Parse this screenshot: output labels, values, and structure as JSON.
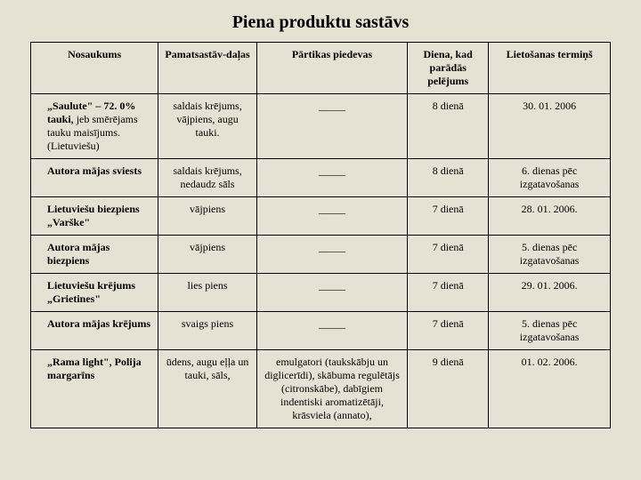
{
  "title": "Piena produktu sastāvs",
  "headers": {
    "c0": "Nosaukums",
    "c1": "Pamatsastāv-daļas",
    "c2": "Pārtikas piedevas",
    "c3": "Diena, kad parādās pelējums",
    "c4": "Lietošanas termiņš"
  },
  "rows": [
    {
      "name_html": "<b>„Saulute\" – 72. 0% tauki,</b> <span class=\"sub\">jeb smērējams tauku maisījums. (Lietuviešu)</span>",
      "comp": "saldais krējums, vājpiens, augu tauki.",
      "add": "_____",
      "day": "8 dienā",
      "term": "30. 01. 2006"
    },
    {
      "name_html": "<b>Autora mājas sviests</b>",
      "comp": "saldais krējums, nedaudz sāls",
      "add": "_____",
      "day": "8 dienā",
      "term": "6. dienas pēc izgatavošanas"
    },
    {
      "name_html": "<b>Lietuviešu biezpiens „Varške\"</b>",
      "comp": "vājpiens",
      "add": "_____",
      "day": "7 dienā",
      "term": "28. 01. 2006."
    },
    {
      "name_html": "<b>Autora mājas biezpiens</b>",
      "comp": "vājpiens",
      "add": "_____",
      "day": "7 dienā",
      "term": "5. dienas pēc izgatavošanas"
    },
    {
      "name_html": "<b>Lietuviešu krējums „Grietines\"</b>",
      "comp": "lies piens",
      "add": "_____",
      "day": "7 dienā",
      "term": "29. 01. 2006."
    },
    {
      "name_html": "<b>Autora mājas krējums</b>",
      "comp": "svaigs piens",
      "add": "_____",
      "day": "7 dienā",
      "term": "5. dienas pēc izgatavošanas"
    },
    {
      "name_html": "<b>„Rama light\", Polija margarīns</b>",
      "comp": "ūdens, augu eļļa un tauki, sāls,",
      "add": "emulgatori (taukskābju un diglicerīdi), skābuma regulētājs (citronskābe), dabīgiem indentiski aromatizētāji, krāsviela (annato),",
      "day": "9 dienā",
      "term": "01. 02. 2006."
    }
  ]
}
